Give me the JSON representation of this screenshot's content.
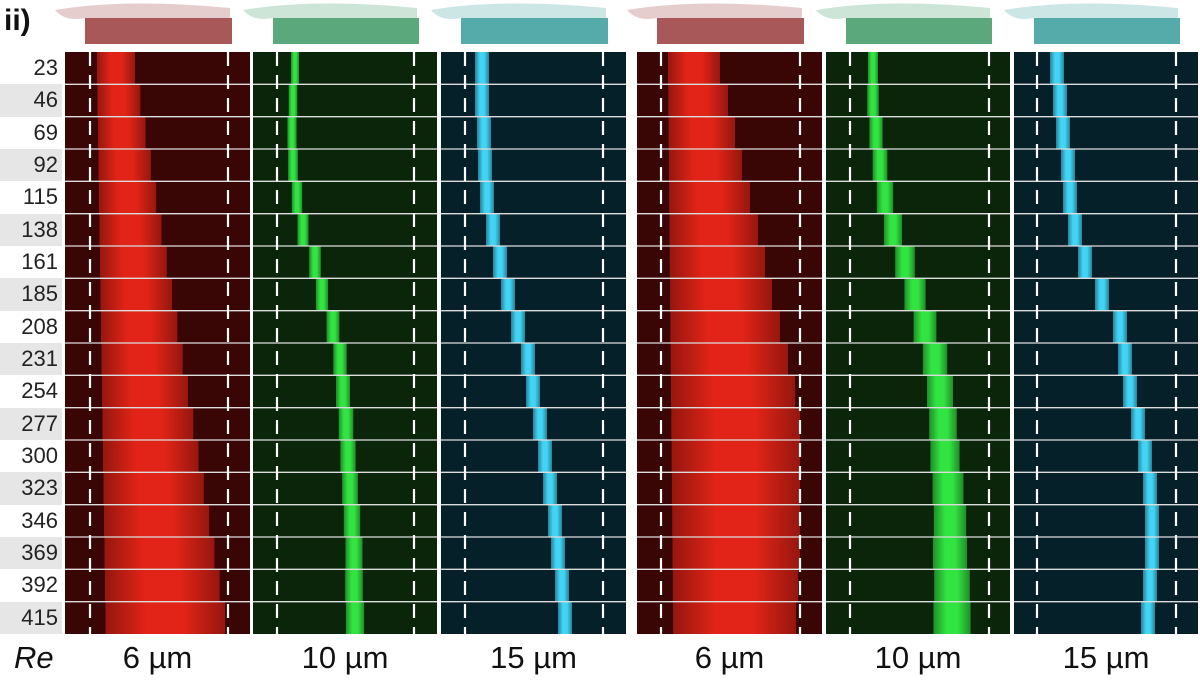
{
  "panel_label": "ii)",
  "row_axis_label": "Re",
  "reynolds_numbers": [
    "23",
    "46",
    "69",
    "92",
    "115",
    "138",
    "161",
    "185",
    "208",
    "231",
    "254",
    "277",
    "300",
    "323",
    "346",
    "369",
    "392",
    "415"
  ],
  "particle_sizes": [
    "6 µm",
    "10 µm",
    "15 µm",
    "6 µm",
    "10 µm",
    "15 µm"
  ],
  "channel_colors": {
    "red": "#ff2a1a",
    "green": "#33ee44",
    "cyan": "#44ddff",
    "red_bg": "#3a0505",
    "green_bg": "#0a250a",
    "cyan_bg": "#06202a",
    "red_cap": "#a85858",
    "green_cap": "#5aa87c",
    "cyan_cap": "#55aaaa"
  }
}
